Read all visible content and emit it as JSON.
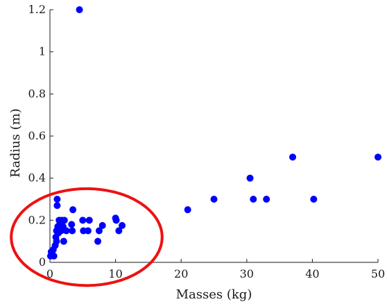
{
  "chart_data": {
    "type": "scatter",
    "xlabel": "Masses (kg)",
    "ylabel": "Radius (m)",
    "xlim": [
      0,
      50
    ],
    "ylim": [
      0,
      1.2
    ],
    "x_ticks": [
      "0",
      "10",
      "20",
      "30",
      "40",
      "50"
    ],
    "y_ticks": [
      "0",
      "0.2",
      "0.4",
      "0.6",
      "0.8",
      "1",
      "1.2"
    ],
    "grid": false,
    "marker_color": "#0000ff",
    "annotation_color": "#ee1111",
    "series": [
      {
        "points": [
          [
            0.1,
            0.03
          ],
          [
            0.2,
            0.05
          ],
          [
            0.3,
            0.04
          ],
          [
            0.5,
            0.06
          ],
          [
            0.6,
            0.03
          ],
          [
            0.8,
            0.08
          ],
          [
            0.9,
            0.12
          ],
          [
            1.0,
            0.15
          ],
          [
            1.0,
            0.1
          ],
          [
            1.1,
            0.3
          ],
          [
            1.1,
            0.27
          ],
          [
            1.2,
            0.17
          ],
          [
            1.3,
            0.14
          ],
          [
            1.4,
            0.2
          ],
          [
            1.5,
            0.18
          ],
          [
            1.7,
            0.15
          ],
          [
            1.8,
            0.2
          ],
          [
            2.0,
            0.17
          ],
          [
            2.1,
            0.1
          ],
          [
            2.2,
            0.2
          ],
          [
            2.5,
            0.15
          ],
          [
            3.3,
            0.18
          ],
          [
            3.4,
            0.15
          ],
          [
            3.5,
            0.25
          ],
          [
            4.5,
            1.2
          ],
          [
            5.0,
            0.2
          ],
          [
            5.1,
            0.15
          ],
          [
            5.8,
            0.15
          ],
          [
            6.0,
            0.2
          ],
          [
            7.3,
            0.1
          ],
          [
            7.5,
            0.15
          ],
          [
            8.0,
            0.175
          ],
          [
            10.0,
            0.21
          ],
          [
            10.1,
            0.2
          ],
          [
            10.5,
            0.15
          ],
          [
            11.0,
            0.175
          ],
          [
            21.0,
            0.25
          ],
          [
            25.0,
            0.3
          ],
          [
            30.5,
            0.4
          ],
          [
            31.0,
            0.3
          ],
          [
            33.0,
            0.3
          ],
          [
            37.0,
            0.5
          ],
          [
            40.2,
            0.3
          ],
          [
            50.0,
            0.5
          ]
        ]
      }
    ],
    "annotation": {
      "shape": "ellipse",
      "center": [
        5.6,
        0.12
      ],
      "radius_x": 11.5,
      "radius_y": 0.23
    }
  }
}
